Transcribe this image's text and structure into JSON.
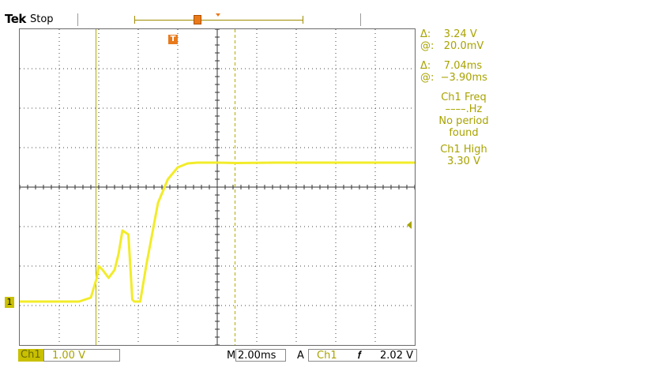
{
  "header": {
    "brand": "Tek",
    "acq_status": "Stop"
  },
  "markers": {
    "trigger_marker": "T",
    "channel_marker": "1"
  },
  "readouts": {
    "cursor_volt_delta": "Δ:    3.24 V",
    "cursor_volt_at": "@:   20.0mV",
    "cursor_time_delta": "Δ:    7.04ms",
    "cursor_time_at": "@:  −3.90ms",
    "freq_title": "Ch1 Freq",
    "freq_value": "––––.Hz",
    "freq_msg_1": "No period",
    "freq_msg_2": "found",
    "high_title": "Ch1 High",
    "high_value": "3.30 V"
  },
  "bottom": {
    "channel": "Ch1",
    "volts_per_div": "1.00 V",
    "m_label": "M",
    "timebase": "2.00ms",
    "a_label": "A",
    "trigger_source": "Ch1",
    "trigger_slope": "𝑓",
    "trigger_level": "2.02 V"
  },
  "colors": {
    "trace": "#f2ec2a",
    "cursor": "#b3ac00",
    "trigger_marker": "#e87a1c"
  },
  "chart_data": {
    "type": "line",
    "title": "",
    "xlabel": "",
    "ylabel": "",
    "xlim": [
      -10,
      10
    ],
    "ylim": [
      -4,
      4
    ],
    "grid": true,
    "series": [
      {
        "x": [
          -10,
          -7.0,
          -6.4,
          -6.1,
          -6.0,
          -5.8,
          -5.5,
          -5.2,
          -5.0,
          -4.8,
          -4.5,
          -4.3,
          -4.2,
          -3.9,
          -3.6,
          -3.0,
          -2.5,
          -2.0,
          -1.5,
          -1.0,
          -0.5,
          0,
          1,
          3,
          6,
          10
        ],
        "y": [
          -2.9,
          -2.9,
          -2.8,
          -2.3,
          -2.0,
          -2.1,
          -2.3,
          -2.1,
          -1.7,
          -1.1,
          -1.2,
          -2.85,
          -2.9,
          -2.9,
          -2.0,
          -0.4,
          0.2,
          0.5,
          0.6,
          0.62,
          0.62,
          0.62,
          0.61,
          0.62,
          0.62,
          0.62
        ]
      }
    ],
    "cursors": {
      "vertical": [
        -6.14,
        0.9
      ]
    }
  }
}
